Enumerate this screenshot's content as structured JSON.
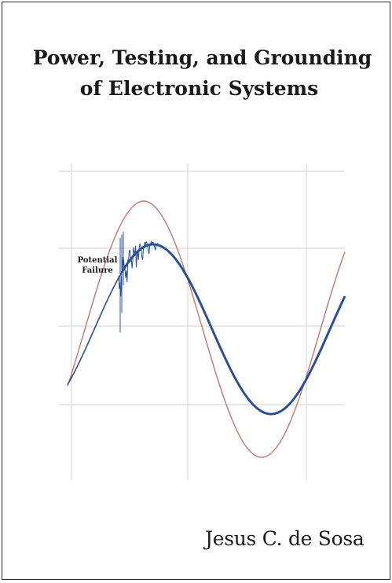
{
  "cover": {
    "title_line1": "Power, Testing, and Grounding",
    "title_line2": "of Electronic Systems",
    "author": "Jesus C. de Sosa"
  },
  "illustration": {
    "annotation_line1": "Potential",
    "annotation_line2": "Failure",
    "colors": {
      "reference_wave": "#c9746a",
      "signal_wave": "#2a4f9c",
      "grid": "#d9d9d9",
      "border": "#2b2b2b"
    }
  }
}
